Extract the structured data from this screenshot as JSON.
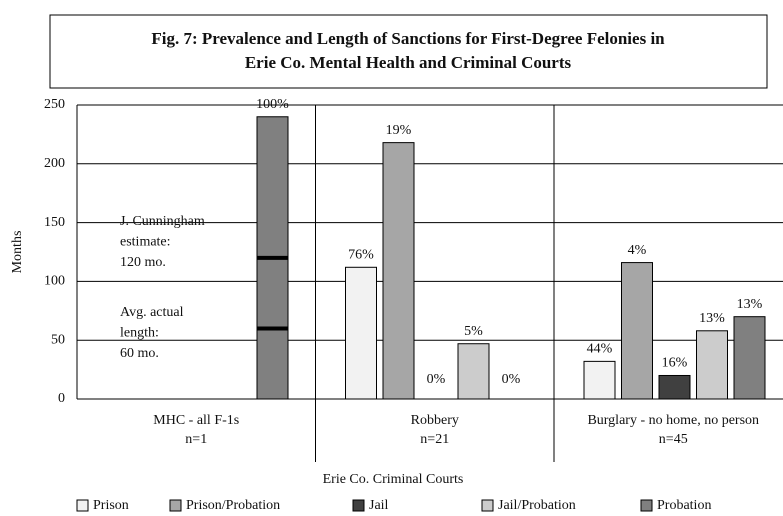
{
  "chart_data": {
    "type": "bar",
    "title": [
      "Fig. 7: Prevalence and Length of Sanctions for First-Degree Felonies in",
      "Erie Co. Mental Health and Criminal Courts"
    ],
    "y_label": "Months",
    "x_label": "Erie Co. Criminal Courts",
    "categories": [
      [
        "MHC - all F-1s",
        "n=1"
      ],
      [
        "Robbery",
        "n=21"
      ],
      [
        "Burglary - no home, no person",
        "n=45"
      ]
    ],
    "series": [
      {
        "name": "Prison",
        "color": "#f2f2f2",
        "values": [
          null,
          112,
          32
        ],
        "percent_labels": [
          null,
          "76%",
          "44%"
        ]
      },
      {
        "name": "Prison/Probation",
        "color": "#a6a6a6",
        "values": [
          null,
          218,
          116
        ],
        "percent_labels": [
          null,
          "19%",
          "4%"
        ]
      },
      {
        "name": "Jail",
        "color": "#404040",
        "values": [
          null,
          0,
          20
        ],
        "percent_labels": [
          null,
          "0%",
          "16%"
        ]
      },
      {
        "name": "Jail/Probation",
        "color": "#cccccc",
        "values": [
          null,
          47,
          58
        ],
        "percent_labels": [
          null,
          "5%",
          "13%"
        ]
      },
      {
        "name": "Probation",
        "color": "#808080",
        "values": [
          240,
          0,
          70
        ],
        "percent_labels": [
          "100%",
          "0%",
          "13%"
        ]
      }
    ],
    "annotations": [
      {
        "lines": [
          "J. Cunningham",
          "estimate:",
          "120 mo."
        ],
        "value": 120
      },
      {
        "lines": [
          "Avg. actual",
          "length:",
          "60 mo."
        ],
        "value": 60
      }
    ],
    "ylim": [
      0,
      250
    ],
    "yticks": [
      0,
      50,
      100,
      150,
      200,
      250
    ],
    "grid": true
  }
}
